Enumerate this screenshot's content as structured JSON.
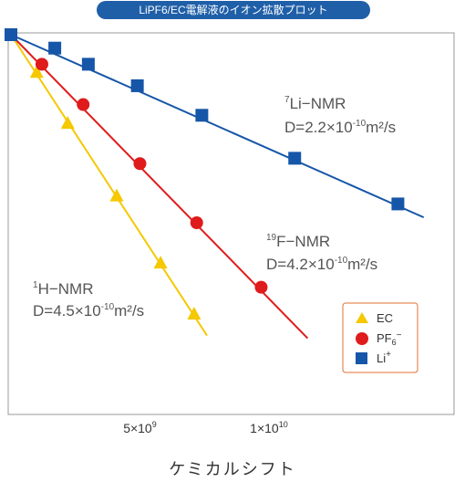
{
  "chart_data": {
    "type": "line",
    "title": "LiPF6/EC電解液のイオン拡散プロット",
    "xlabel": "ケミカルシフト",
    "ylabel": "",
    "x_ticks": [
      {
        "value": 5000000000.0,
        "label_base": "5×10",
        "label_exp": "9"
      },
      {
        "value": 10000000000.0,
        "label_base": "1×10",
        "label_exp": "10"
      }
    ],
    "xlim": [
      0,
      17000000000.0
    ],
    "ylim": [
      -14,
      0
    ],
    "grid": false,
    "legend_position": "bottom-right",
    "series": [
      {
        "name": "EC",
        "marker": "triangle",
        "color": "#f5c800",
        "x": [
          0,
          1000000000.0,
          2200000000.0,
          4100000000.0,
          5800000000.0,
          7100000000.0
        ],
        "y": [
          0,
          -1.4,
          -3.3,
          -6.0,
          -8.5,
          -10.4
        ],
        "line_end": {
          "x": 7600000000.0,
          "y": -11.2
        }
      },
      {
        "name": "PF6−",
        "marker": "circle",
        "color": "#e01b1b",
        "x": [
          0,
          1200000000.0,
          2800000000.0,
          5000000000.0,
          7200000000.0,
          9700000000.0
        ],
        "y": [
          0,
          -1.1,
          -2.6,
          -4.8,
          -7.0,
          -9.4
        ],
        "line_end": {
          "x": 11500000000.0,
          "y": -11.3
        }
      },
      {
        "name": "Li+",
        "marker": "square",
        "color": "#1656a8",
        "x": [
          0,
          1700000000.0,
          3000000000.0,
          4900000000.0,
          7400000000.0,
          11000000000.0,
          15000000000.0
        ],
        "y": [
          0,
          -0.5,
          -1.1,
          -1.9,
          -3.0,
          -4.6,
          -6.3
        ],
        "line_end": {
          "x": 16000000000.0,
          "y": -6.8
        }
      }
    ],
    "annotations": [
      {
        "id": "li",
        "sup": "7",
        "line1": "Li−NMR",
        "line2_base": "D=2.2×10",
        "line2_exp": "-10",
        "line2_unit": "m²/s"
      },
      {
        "id": "f",
        "sup": "19",
        "line1": "F−NMR",
        "line2_base": "D=4.2×10",
        "line2_exp": "-10",
        "line2_unit": "m²/s"
      },
      {
        "id": "h",
        "sup": "1",
        "line1": "H−NMR",
        "line2_base": "D=4.5×10",
        "line2_exp": "-10",
        "line2_unit": "m²/s"
      }
    ],
    "legend": [
      {
        "label": "EC",
        "marker": "triangle",
        "color": "#f5c800"
      },
      {
        "label_base": "PF",
        "label_sub": "6",
        "label_sup": "−",
        "marker": "circle",
        "color": "#e01b1b"
      },
      {
        "label_base": "Li",
        "label_sup": "+",
        "marker": "square",
        "color": "#1656a8"
      }
    ]
  }
}
